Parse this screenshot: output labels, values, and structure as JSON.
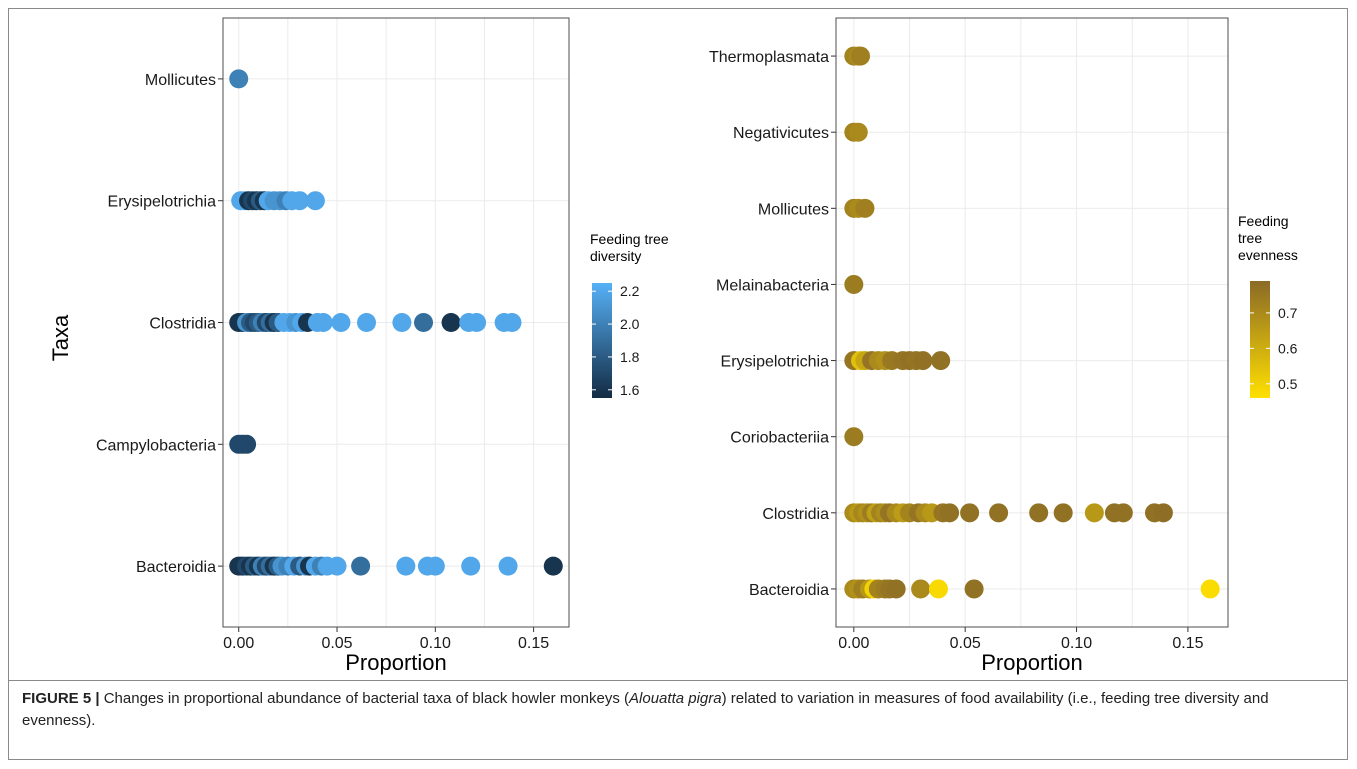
{
  "caption": {
    "label": "FIGURE 5 |",
    "text_before": " Changes in proportional abundance of bacterial taxa of black howler monkeys (",
    "italic": "Alouatta pigra",
    "text_after": ") related to variation in measures of food availability (i.e., feeding tree diversity and evenness)."
  },
  "chart_data": [
    {
      "type": "scatter",
      "xlabel": "Proportion",
      "ylabel": "Taxa",
      "xlim": [
        -0.008,
        0.168
      ],
      "xticks": [
        0,
        0.05,
        0.1,
        0.15
      ],
      "xtick_labels": [
        "0.00",
        "0.05",
        "0.10",
        "0.15"
      ],
      "categories": [
        "Bacteroidia",
        "Campylobacteria",
        "Clostridia",
        "Erysipelotrichia",
        "Mollicutes"
      ],
      "grid": true,
      "legend": {
        "title": [
          "Feeding tree",
          "diversity"
        ],
        "position": "right",
        "range": [
          1.55,
          2.25
        ],
        "ticks": [
          1.6,
          1.8,
          2.0,
          2.2
        ],
        "tick_labels": [
          "1.6",
          "1.8",
          "2.0",
          "2.2"
        ],
        "color_low": "#132b43",
        "color_high": "#56b1f7"
      },
      "points": [
        {
          "taxon": "Mollicutes",
          "x": 0.0,
          "value": 2.0
        },
        {
          "taxon": "Erysipelotrichia",
          "x": 0.001,
          "value": 2.2
        },
        {
          "taxon": "Erysipelotrichia",
          "x": 0.003,
          "value": 2.2
        },
        {
          "taxon": "Erysipelotrichia",
          "x": 0.005,
          "value": 1.6
        },
        {
          "taxon": "Erysipelotrichia",
          "x": 0.007,
          "value": 1.7
        },
        {
          "taxon": "Erysipelotrichia",
          "x": 0.009,
          "value": 1.6
        },
        {
          "taxon": "Erysipelotrichia",
          "x": 0.011,
          "value": 1.8
        },
        {
          "taxon": "Erysipelotrichia",
          "x": 0.013,
          "value": 1.6
        },
        {
          "taxon": "Erysipelotrichia",
          "x": 0.015,
          "value": 2.2
        },
        {
          "taxon": "Erysipelotrichia",
          "x": 0.018,
          "value": 2.1
        },
        {
          "taxon": "Erysipelotrichia",
          "x": 0.021,
          "value": 2.1
        },
        {
          "taxon": "Erysipelotrichia",
          "x": 0.024,
          "value": 2.0
        },
        {
          "taxon": "Erysipelotrichia",
          "x": 0.027,
          "value": 2.2
        },
        {
          "taxon": "Erysipelotrichia",
          "x": 0.031,
          "value": 2.2
        },
        {
          "taxon": "Erysipelotrichia",
          "x": 0.039,
          "value": 2.2
        },
        {
          "taxon": "Clostridia",
          "x": 0.0,
          "value": 1.6
        },
        {
          "taxon": "Clostridia",
          "x": 0.002,
          "value": 1.6
        },
        {
          "taxon": "Clostridia",
          "x": 0.004,
          "value": 2.1
        },
        {
          "taxon": "Clostridia",
          "x": 0.006,
          "value": 1.8
        },
        {
          "taxon": "Clostridia",
          "x": 0.008,
          "value": 1.7
        },
        {
          "taxon": "Clostridia",
          "x": 0.01,
          "value": 1.8
        },
        {
          "taxon": "Clostridia",
          "x": 0.012,
          "value": 2.0
        },
        {
          "taxon": "Clostridia",
          "x": 0.014,
          "value": 1.7
        },
        {
          "taxon": "Clostridia",
          "x": 0.016,
          "value": 1.9
        },
        {
          "taxon": "Clostridia",
          "x": 0.018,
          "value": 1.6
        },
        {
          "taxon": "Clostridia",
          "x": 0.02,
          "value": 1.8
        },
        {
          "taxon": "Clostridia",
          "x": 0.023,
          "value": 2.2
        },
        {
          "taxon": "Clostridia",
          "x": 0.026,
          "value": 2.2
        },
        {
          "taxon": "Clostridia",
          "x": 0.029,
          "value": 2.1
        },
        {
          "taxon": "Clostridia",
          "x": 0.032,
          "value": 2.2
        },
        {
          "taxon": "Clostridia",
          "x": 0.035,
          "value": 1.6
        },
        {
          "taxon": "Clostridia",
          "x": 0.04,
          "value": 2.2
        },
        {
          "taxon": "Clostridia",
          "x": 0.043,
          "value": 2.2
        },
        {
          "taxon": "Clostridia",
          "x": 0.052,
          "value": 2.2
        },
        {
          "taxon": "Clostridia",
          "x": 0.065,
          "value": 2.2
        },
        {
          "taxon": "Clostridia",
          "x": 0.083,
          "value": 2.2
        },
        {
          "taxon": "Clostridia",
          "x": 0.094,
          "value": 1.9
        },
        {
          "taxon": "Clostridia",
          "x": 0.108,
          "value": 1.6
        },
        {
          "taxon": "Clostridia",
          "x": 0.117,
          "value": 2.2
        },
        {
          "taxon": "Clostridia",
          "x": 0.121,
          "value": 2.2
        },
        {
          "taxon": "Clostridia",
          "x": 0.135,
          "value": 2.2
        },
        {
          "taxon": "Clostridia",
          "x": 0.139,
          "value": 2.2
        },
        {
          "taxon": "Campylobacteria",
          "x": 0.0,
          "value": 1.7
        },
        {
          "taxon": "Campylobacteria",
          "x": 0.002,
          "value": 1.7
        },
        {
          "taxon": "Campylobacteria",
          "x": 0.004,
          "value": 1.7
        },
        {
          "taxon": "Bacteroidia",
          "x": 0.0,
          "value": 1.6
        },
        {
          "taxon": "Bacteroidia",
          "x": 0.002,
          "value": 1.6
        },
        {
          "taxon": "Bacteroidia",
          "x": 0.004,
          "value": 1.7
        },
        {
          "taxon": "Bacteroidia",
          "x": 0.006,
          "value": 1.6
        },
        {
          "taxon": "Bacteroidia",
          "x": 0.008,
          "value": 1.8
        },
        {
          "taxon": "Bacteroidia",
          "x": 0.01,
          "value": 1.6
        },
        {
          "taxon": "Bacteroidia",
          "x": 0.012,
          "value": 2.0
        },
        {
          "taxon": "Bacteroidia",
          "x": 0.014,
          "value": 1.7
        },
        {
          "taxon": "Bacteroidia",
          "x": 0.016,
          "value": 1.9
        },
        {
          "taxon": "Bacteroidia",
          "x": 0.018,
          "value": 1.6
        },
        {
          "taxon": "Bacteroidia",
          "x": 0.02,
          "value": 1.8
        },
        {
          "taxon": "Bacteroidia",
          "x": 0.022,
          "value": 2.1
        },
        {
          "taxon": "Bacteroidia",
          "x": 0.025,
          "value": 2.0
        },
        {
          "taxon": "Bacteroidia",
          "x": 0.028,
          "value": 2.2
        },
        {
          "taxon": "Bacteroidia",
          "x": 0.031,
          "value": 1.8
        },
        {
          "taxon": "Bacteroidia",
          "x": 0.034,
          "value": 2.1
        },
        {
          "taxon": "Bacteroidia",
          "x": 0.036,
          "value": 1.6
        },
        {
          "taxon": "Bacteroidia",
          "x": 0.039,
          "value": 2.2
        },
        {
          "taxon": "Bacteroidia",
          "x": 0.042,
          "value": 2.0
        },
        {
          "taxon": "Bacteroidia",
          "x": 0.045,
          "value": 2.2
        },
        {
          "taxon": "Bacteroidia",
          "x": 0.05,
          "value": 2.2
        },
        {
          "taxon": "Bacteroidia",
          "x": 0.062,
          "value": 1.9
        },
        {
          "taxon": "Bacteroidia",
          "x": 0.085,
          "value": 2.2
        },
        {
          "taxon": "Bacteroidia",
          "x": 0.096,
          "value": 2.2
        },
        {
          "taxon": "Bacteroidia",
          "x": 0.1,
          "value": 2.2
        },
        {
          "taxon": "Bacteroidia",
          "x": 0.118,
          "value": 2.2
        },
        {
          "taxon": "Bacteroidia",
          "x": 0.137,
          "value": 2.2
        },
        {
          "taxon": "Bacteroidia",
          "x": 0.16,
          "value": 1.6
        }
      ]
    },
    {
      "type": "scatter",
      "xlabel": "Proportion",
      "ylabel": "",
      "xlim": [
        -0.008,
        0.168
      ],
      "xticks": [
        0,
        0.05,
        0.1,
        0.15
      ],
      "xtick_labels": [
        "0.00",
        "0.05",
        "0.10",
        "0.15"
      ],
      "categories": [
        "Bacteroidia",
        "Clostridia",
        "Coriobacteriia",
        "Erysipelotrichia",
        "Melainabacteria",
        "Mollicutes",
        "Negativicutes",
        "Thermoplasmata"
      ],
      "grid": true,
      "legend": {
        "title": [
          "Feeding",
          "tree",
          "evenness"
        ],
        "position": "right",
        "range": [
          0.46,
          0.79
        ],
        "ticks": [
          0.5,
          0.6,
          0.7
        ],
        "tick_labels": [
          "0.5",
          "0.6",
          "0.7"
        ],
        "color_low": "#ffe000",
        "color_high": "#8a6a26"
      },
      "points": [
        {
          "taxon": "Thermoplasmata",
          "x": 0.0,
          "value": 0.72
        },
        {
          "taxon": "Thermoplasmata",
          "x": 0.002,
          "value": 0.7
        },
        {
          "taxon": "Thermoplasmata",
          "x": 0.003,
          "value": 0.73
        },
        {
          "taxon": "Negativicutes",
          "x": 0.0,
          "value": 0.72
        },
        {
          "taxon": "Negativicutes",
          "x": 0.002,
          "value": 0.7
        },
        {
          "taxon": "Mollicutes",
          "x": 0.0,
          "value": 0.72
        },
        {
          "taxon": "Mollicutes",
          "x": 0.002,
          "value": 0.7
        },
        {
          "taxon": "Mollicutes",
          "x": 0.005,
          "value": 0.73
        },
        {
          "taxon": "Melainabacteria",
          "x": 0.0,
          "value": 0.74
        },
        {
          "taxon": "Erysipelotrichia",
          "x": 0.0,
          "value": 0.76
        },
        {
          "taxon": "Erysipelotrichia",
          "x": 0.003,
          "value": 0.55
        },
        {
          "taxon": "Erysipelotrichia",
          "x": 0.005,
          "value": 0.62
        },
        {
          "taxon": "Erysipelotrichia",
          "x": 0.008,
          "value": 0.76
        },
        {
          "taxon": "Erysipelotrichia",
          "x": 0.011,
          "value": 0.7
        },
        {
          "taxon": "Erysipelotrichia",
          "x": 0.014,
          "value": 0.68
        },
        {
          "taxon": "Erysipelotrichia",
          "x": 0.017,
          "value": 0.75
        },
        {
          "taxon": "Erysipelotrichia",
          "x": 0.022,
          "value": 0.76
        },
        {
          "taxon": "Erysipelotrichia",
          "x": 0.025,
          "value": 0.77
        },
        {
          "taxon": "Erysipelotrichia",
          "x": 0.028,
          "value": 0.76
        },
        {
          "taxon": "Erysipelotrichia",
          "x": 0.031,
          "value": 0.77
        },
        {
          "taxon": "Erysipelotrichia",
          "x": 0.039,
          "value": 0.77
        },
        {
          "taxon": "Coriobacteriia",
          "x": 0.0,
          "value": 0.74
        },
        {
          "taxon": "Clostridia",
          "x": 0.0,
          "value": 0.7
        },
        {
          "taxon": "Clostridia",
          "x": 0.002,
          "value": 0.66
        },
        {
          "taxon": "Clostridia",
          "x": 0.004,
          "value": 0.71
        },
        {
          "taxon": "Clostridia",
          "x": 0.006,
          "value": 0.68
        },
        {
          "taxon": "Clostridia",
          "x": 0.008,
          "value": 0.74
        },
        {
          "taxon": "Clostridia",
          "x": 0.01,
          "value": 0.64
        },
        {
          "taxon": "Clostridia",
          "x": 0.012,
          "value": 0.72
        },
        {
          "taxon": "Clostridia",
          "x": 0.014,
          "value": 0.69
        },
        {
          "taxon": "Clostridia",
          "x": 0.016,
          "value": 0.76
        },
        {
          "taxon": "Clostridia",
          "x": 0.019,
          "value": 0.7
        },
        {
          "taxon": "Clostridia",
          "x": 0.022,
          "value": 0.65
        },
        {
          "taxon": "Clostridia",
          "x": 0.025,
          "value": 0.72
        },
        {
          "taxon": "Clostridia",
          "x": 0.029,
          "value": 0.76
        },
        {
          "taxon": "Clostridia",
          "x": 0.032,
          "value": 0.7
        },
        {
          "taxon": "Clostridia",
          "x": 0.035,
          "value": 0.66
        },
        {
          "taxon": "Clostridia",
          "x": 0.04,
          "value": 0.76
        },
        {
          "taxon": "Clostridia",
          "x": 0.043,
          "value": 0.77
        },
        {
          "taxon": "Clostridia",
          "x": 0.052,
          "value": 0.77
        },
        {
          "taxon": "Clostridia",
          "x": 0.065,
          "value": 0.77
        },
        {
          "taxon": "Clostridia",
          "x": 0.083,
          "value": 0.77
        },
        {
          "taxon": "Clostridia",
          "x": 0.094,
          "value": 0.77
        },
        {
          "taxon": "Clostridia",
          "x": 0.108,
          "value": 0.66
        },
        {
          "taxon": "Clostridia",
          "x": 0.117,
          "value": 0.77
        },
        {
          "taxon": "Clostridia",
          "x": 0.121,
          "value": 0.77
        },
        {
          "taxon": "Clostridia",
          "x": 0.135,
          "value": 0.77
        },
        {
          "taxon": "Clostridia",
          "x": 0.139,
          "value": 0.78
        },
        {
          "taxon": "Bacteroidia",
          "x": 0.0,
          "value": 0.7
        },
        {
          "taxon": "Bacteroidia",
          "x": 0.002,
          "value": 0.68
        },
        {
          "taxon": "Bacteroidia",
          "x": 0.004,
          "value": 0.73
        },
        {
          "taxon": "Bacteroidia",
          "x": 0.007,
          "value": 0.66
        },
        {
          "taxon": "Bacteroidia",
          "x": 0.009,
          "value": 0.5
        },
        {
          "taxon": "Bacteroidia",
          "x": 0.011,
          "value": 0.72
        },
        {
          "taxon": "Bacteroidia",
          "x": 0.014,
          "value": 0.74
        },
        {
          "taxon": "Bacteroidia",
          "x": 0.016,
          "value": 0.76
        },
        {
          "taxon": "Bacteroidia",
          "x": 0.019,
          "value": 0.77
        },
        {
          "taxon": "Bacteroidia",
          "x": 0.03,
          "value": 0.7
        },
        {
          "taxon": "Bacteroidia",
          "x": 0.038,
          "value": 0.48
        },
        {
          "taxon": "Bacteroidia",
          "x": 0.054,
          "value": 0.77
        },
        {
          "taxon": "Bacteroidia",
          "x": 0.16,
          "value": 0.47
        }
      ]
    }
  ]
}
